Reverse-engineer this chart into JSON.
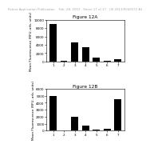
{
  "header_text": "Patent Application Publication    Feb. 28, 2013   Sheet 17 of 17   US 2013/0049372 A1",
  "fig_top": {
    "title": "Figure 12A",
    "categories": [
      "1",
      "2",
      "3",
      "4",
      "5",
      "6",
      "7"
    ],
    "values": [
      9000,
      100,
      4500,
      3500,
      900,
      200,
      500
    ],
    "ylabel": "Mean Fluorescence (RFU, arb. units)",
    "ylim": [
      0,
      10000
    ],
    "yticks": [
      0,
      2000,
      4000,
      6000,
      8000,
      10000
    ],
    "bar_color": "#000000"
  },
  "fig_bot": {
    "title": "Figure 12B",
    "categories": [
      "1",
      "2",
      "3",
      "4",
      "5",
      "6",
      "7"
    ],
    "values": [
      5000,
      50,
      2000,
      700,
      100,
      200,
      4500
    ],
    "ylabel": "Mean Fluorescence (RFU, arb. units)",
    "ylim": [
      0,
      6000
    ],
    "yticks": [
      0,
      1000,
      2000,
      3000,
      4000,
      5000,
      6000
    ],
    "bar_color": "#000000"
  },
  "background_color": "#ffffff",
  "header_fontsize": 2.8,
  "title_fontsize": 4.2,
  "axis_fontsize": 3.0,
  "tick_fontsize": 3.0
}
